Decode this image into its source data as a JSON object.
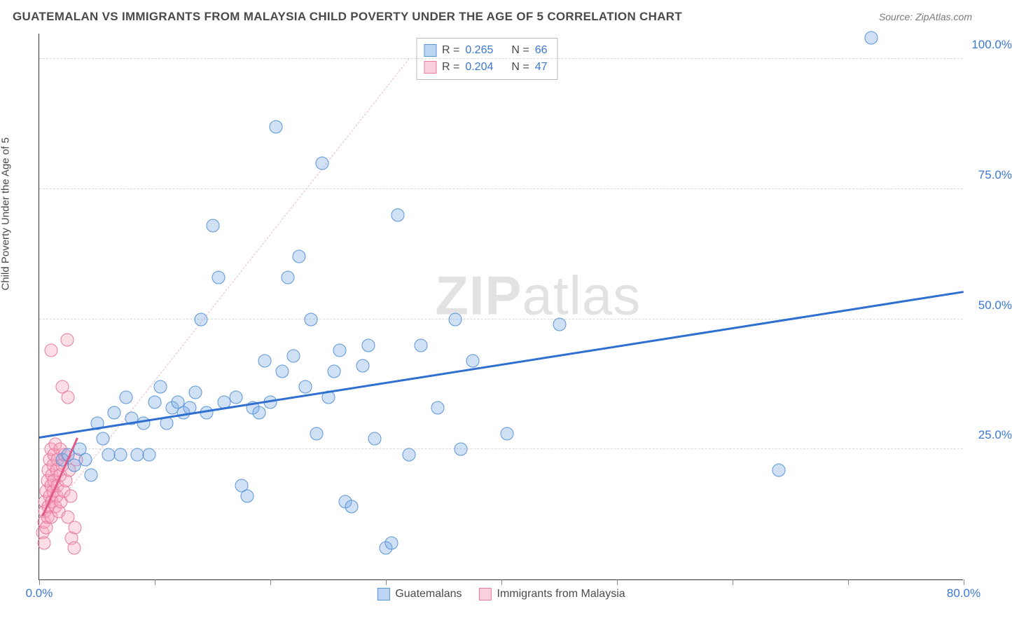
{
  "header": {
    "title": "GUATEMALAN VS IMMIGRANTS FROM MALAYSIA CHILD POVERTY UNDER THE AGE OF 5 CORRELATION CHART",
    "source": "Source: ZipAtlas.com"
  },
  "y_axis": {
    "label": "Child Poverty Under the Age of 5"
  },
  "watermark": {
    "part1": "ZIP",
    "part2": "atlas"
  },
  "chart": {
    "type": "scatter",
    "xlim": [
      0,
      80
    ],
    "ylim": [
      0,
      105
    ],
    "x_ticks": [
      0,
      10,
      20,
      30,
      40,
      50,
      60,
      70,
      80
    ],
    "x_tick_labels": {
      "0": "0.0%",
      "80": "80.0%"
    },
    "y_gridlines": [
      25,
      50,
      75,
      100
    ],
    "y_tick_labels": {
      "25": "25.0%",
      "50": "50.0%",
      "75": "75.0%",
      "100": "100.0%"
    },
    "background_color": "#ffffff",
    "grid_color": "#d8d8d8",
    "axis_color": "#333333",
    "tick_label_color": "#3a78d6",
    "tick_label_fontsize": 17,
    "series": {
      "blue": {
        "label": "Guatemalans",
        "fill_color": "rgba(120,170,230,0.35)",
        "stroke_color": "#5a95d8",
        "marker_size": 19,
        "R": "0.265",
        "N": "66",
        "trend": {
          "x1": 0,
          "y1": 27,
          "x2": 80,
          "y2": 55,
          "color": "#2f6fd0",
          "width": 3
        },
        "points": [
          [
            2,
            23
          ],
          [
            2.5,
            24
          ],
          [
            3,
            22
          ],
          [
            3.5,
            25
          ],
          [
            4,
            23
          ],
          [
            4.5,
            20
          ],
          [
            5,
            30
          ],
          [
            5.5,
            27
          ],
          [
            6,
            24
          ],
          [
            6.5,
            32
          ],
          [
            7,
            24
          ],
          [
            7.5,
            35
          ],
          [
            8,
            31
          ],
          [
            8.5,
            24
          ],
          [
            9,
            30
          ],
          [
            9.5,
            24
          ],
          [
            10,
            34
          ],
          [
            10.5,
            37
          ],
          [
            11,
            30
          ],
          [
            11.5,
            33
          ],
          [
            12,
            34
          ],
          [
            12.5,
            32
          ],
          [
            13,
            33
          ],
          [
            13.5,
            36
          ],
          [
            14,
            50
          ],
          [
            14.5,
            32
          ],
          [
            15,
            68
          ],
          [
            15.5,
            58
          ],
          [
            16,
            34
          ],
          [
            17,
            35
          ],
          [
            17.5,
            18
          ],
          [
            18,
            16
          ],
          [
            18.5,
            33
          ],
          [
            19,
            32
          ],
          [
            19.5,
            42
          ],
          [
            20,
            34
          ],
          [
            20.5,
            87
          ],
          [
            21,
            40
          ],
          [
            21.5,
            58
          ],
          [
            22,
            43
          ],
          [
            22.5,
            62
          ],
          [
            23,
            37
          ],
          [
            23.5,
            50
          ],
          [
            24,
            28
          ],
          [
            24.5,
            80
          ],
          [
            25,
            35
          ],
          [
            25.5,
            40
          ],
          [
            26,
            44
          ],
          [
            26.5,
            15
          ],
          [
            27,
            14
          ],
          [
            28,
            41
          ],
          [
            28.5,
            45
          ],
          [
            29,
            27
          ],
          [
            30,
            6
          ],
          [
            30.5,
            7
          ],
          [
            31,
            70
          ],
          [
            32,
            24
          ],
          [
            33,
            45
          ],
          [
            34.5,
            33
          ],
          [
            36,
            50
          ],
          [
            36.5,
            25
          ],
          [
            37.5,
            42
          ],
          [
            40.5,
            28
          ],
          [
            45,
            49
          ],
          [
            64,
            21
          ],
          [
            72,
            104
          ]
        ]
      },
      "pink": {
        "label": "Immigrants from Malaysia",
        "fill_color": "rgba(245,160,185,0.35)",
        "stroke_color": "#e87ba0",
        "marker_size": 19,
        "R": "0.204",
        "N": "47",
        "trend_dash": {
          "x1": 0,
          "y1": 10,
          "x2": 32,
          "y2": 100,
          "color": "#f0b8c8",
          "width": 1.5
        },
        "trend_solid": {
          "x1": 0.3,
          "y1": 12,
          "x2": 3.3,
          "y2": 27,
          "color": "#e05a85",
          "width": 3
        },
        "points": [
          [
            0.3,
            9
          ],
          [
            0.4,
            11
          ],
          [
            0.5,
            13
          ],
          [
            0.5,
            15
          ],
          [
            0.6,
            10
          ],
          [
            0.6,
            17
          ],
          [
            0.7,
            12
          ],
          [
            0.7,
            19
          ],
          [
            0.8,
            14
          ],
          [
            0.8,
            21
          ],
          [
            0.9,
            16
          ],
          [
            0.9,
            23
          ],
          [
            1.0,
            12
          ],
          [
            1.0,
            18
          ],
          [
            1.0,
            25
          ],
          [
            1.1,
            20
          ],
          [
            1.1,
            15
          ],
          [
            1.2,
            22
          ],
          [
            1.2,
            17
          ],
          [
            1.3,
            24
          ],
          [
            1.3,
            19
          ],
          [
            1.4,
            14
          ],
          [
            1.4,
            26
          ],
          [
            1.5,
            21
          ],
          [
            1.5,
            16
          ],
          [
            1.6,
            23
          ],
          [
            1.6,
            18
          ],
          [
            1.7,
            13
          ],
          [
            1.8,
            20
          ],
          [
            1.8,
            25
          ],
          [
            1.9,
            15
          ],
          [
            2.0,
            22
          ],
          [
            2.0,
            37
          ],
          [
            2.1,
            17
          ],
          [
            2.2,
            24
          ],
          [
            2.3,
            19
          ],
          [
            2.4,
            46
          ],
          [
            2.5,
            12
          ],
          [
            2.5,
            35
          ],
          [
            2.6,
            21
          ],
          [
            2.7,
            16
          ],
          [
            2.8,
            8
          ],
          [
            3.0,
            6
          ],
          [
            3.1,
            10
          ],
          [
            3.2,
            23
          ],
          [
            0.4,
            7
          ],
          [
            1.0,
            44
          ]
        ]
      }
    },
    "legend_top": {
      "r_label": "R =",
      "n_label": "N ="
    },
    "legend_bottom": {
      "items": [
        "blue",
        "pink"
      ]
    }
  }
}
